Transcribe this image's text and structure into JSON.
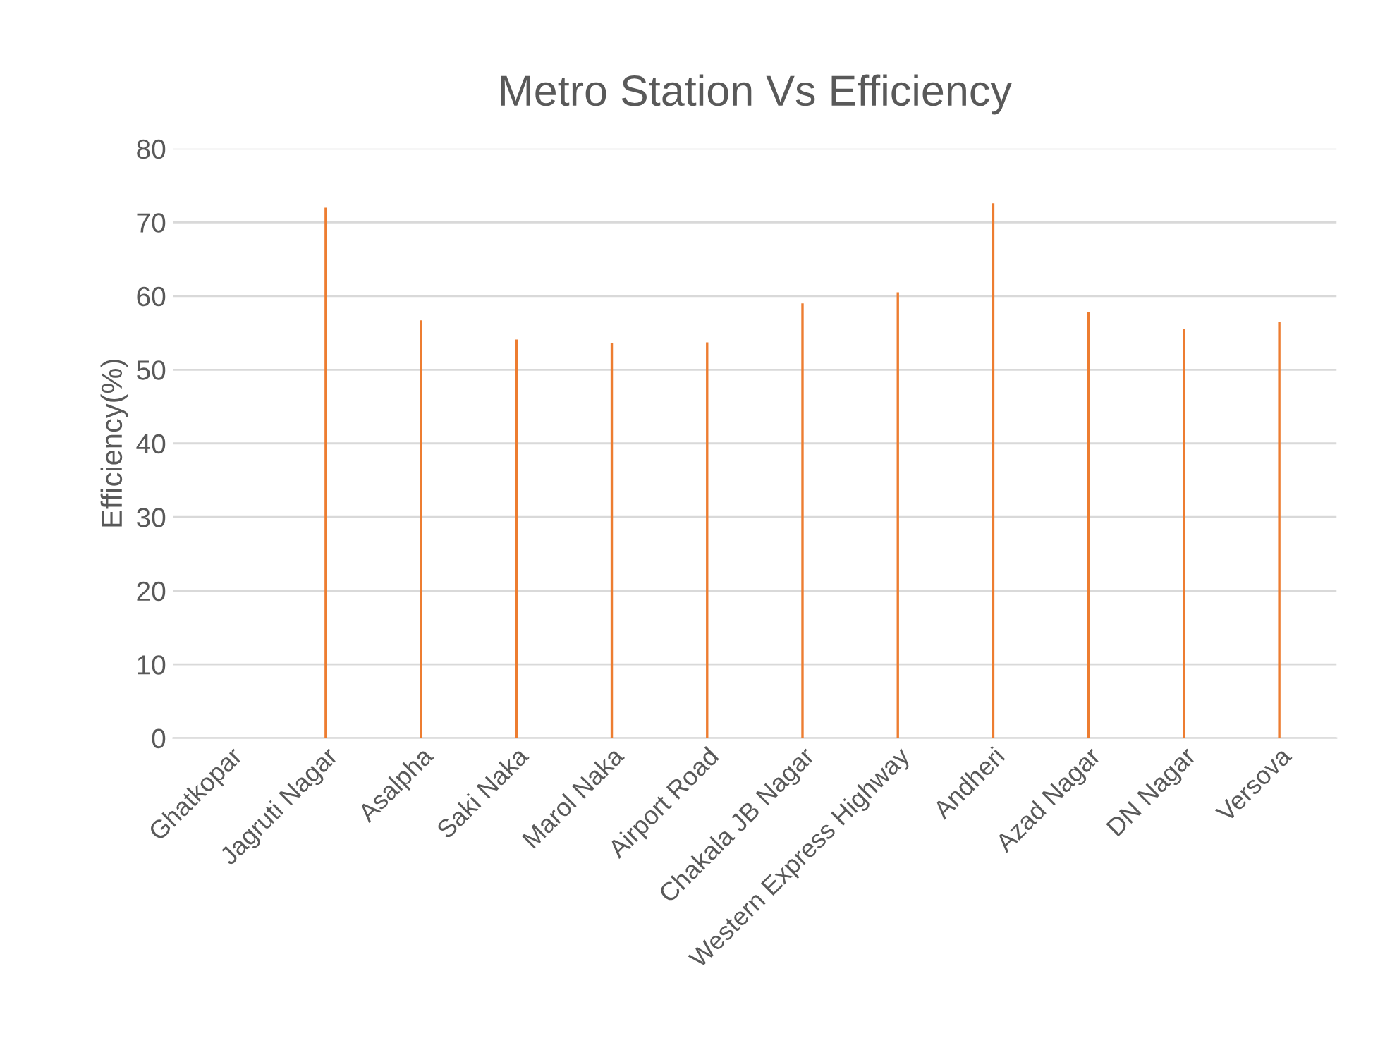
{
  "chart_data": {
    "type": "bar",
    "title": "Metro Station Vs Efficiency",
    "ylabel": "Efficiency(%)",
    "categories": [
      "Ghatkopar",
      "Jagruti Nagar",
      "Asalpha",
      "Saki Naka",
      "Marol Naka",
      "Airport Road",
      "Chakala JB Nagar",
      "Western Express Highway",
      "Andheri",
      "Azad Nagar",
      "DN Nagar",
      "Versova"
    ],
    "values": [
      null,
      72,
      56.7,
      54.1,
      53.6,
      53.7,
      59,
      60.5,
      72.6,
      57.8,
      55.5,
      56.5
    ],
    "color": "#ed7d31",
    "ylim": [
      0,
      80
    ],
    "yticks": [
      0,
      10,
      20,
      30,
      40,
      50,
      60,
      70,
      80
    ],
    "grid": "y"
  }
}
